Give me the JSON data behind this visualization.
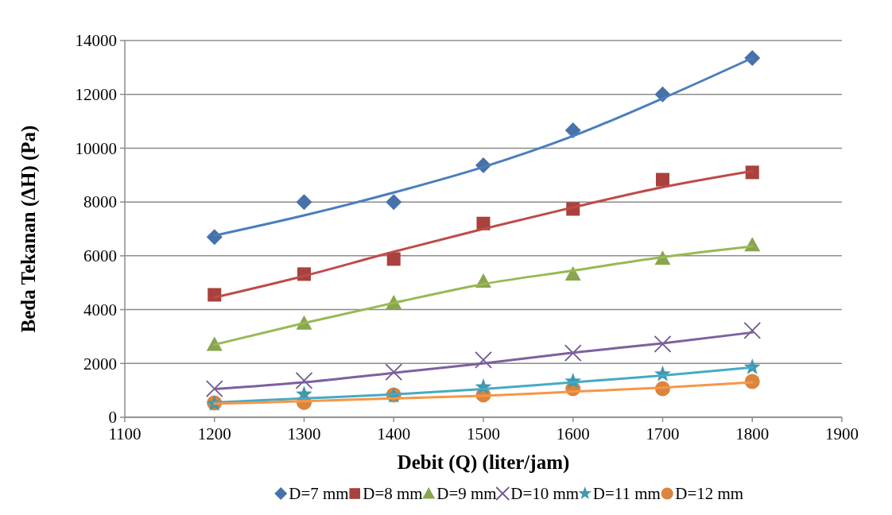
{
  "chart_data": {
    "type": "scatter",
    "xlabel": "Debit (Q) (liter/jam)",
    "ylabel": "Beda Tekanan (ΔH) (Pa)",
    "x": [
      1200,
      1300,
      1400,
      1500,
      1600,
      1700,
      1800
    ],
    "xlim": [
      1100,
      1900
    ],
    "xticks": [
      1100,
      1200,
      1300,
      1400,
      1500,
      1600,
      1700,
      1800,
      1900
    ],
    "ylim": [
      0,
      14000
    ],
    "yticks": [
      0,
      2000,
      4000,
      6000,
      8000,
      10000,
      12000,
      14000
    ],
    "grid": "y",
    "legend": "bottom",
    "series": [
      {
        "name": "D=7 mm",
        "color": "#4672aa",
        "marker": "diamond",
        "values": [
          6700,
          8000,
          8000,
          9360,
          10660,
          12000,
          13350
        ]
      },
      {
        "name": "D=8 mm",
        "color": "#a9413e",
        "marker": "square",
        "values": [
          4550,
          5320,
          5880,
          7200,
          7740,
          8830,
          9100
        ]
      },
      {
        "name": "D=9 mm",
        "color": "#89a54e",
        "marker": "triangle",
        "values": [
          2700,
          3490,
          4250,
          5050,
          5320,
          5900,
          6400
        ]
      },
      {
        "name": "D=10 mm",
        "color": "#71588f",
        "marker": "cross",
        "values": [
          1060,
          1360,
          1680,
          2130,
          2390,
          2720,
          3220
        ]
      },
      {
        "name": "D=11 mm",
        "color": "#4198af",
        "marker": "star",
        "values": [
          500,
          850,
          800,
          1120,
          1330,
          1600,
          1860
        ]
      },
      {
        "name": "D=12 mm",
        "color": "#db843d",
        "marker": "circle",
        "values": [
          530,
          550,
          830,
          830,
          1060,
          1060,
          1330
        ]
      },
      {
        "type": "line",
        "color": "#4a7ebb",
        "marker": "none",
        "x": [
          1200,
          1300,
          1400,
          1500,
          1600,
          1700,
          1800
        ],
        "values": [
          6750,
          7500,
          8350,
          9300,
          10450,
          11850,
          13350
        ]
      },
      {
        "type": "line",
        "color": "#be4b48",
        "marker": "none",
        "x": [
          1200,
          1300,
          1400,
          1500,
          1600,
          1700,
          1800
        ],
        "values": [
          4450,
          5250,
          6150,
          7000,
          7800,
          8550,
          9150
        ]
      },
      {
        "type": "line",
        "color": "#98b954",
        "marker": "none",
        "x": [
          1200,
          1300,
          1400,
          1500,
          1600,
          1700,
          1800
        ],
        "values": [
          2700,
          3500,
          4250,
          4950,
          5450,
          5950,
          6350
        ]
      },
      {
        "type": "line",
        "color": "#7d60a0",
        "marker": "none",
        "x": [
          1200,
          1300,
          1400,
          1500,
          1600,
          1700,
          1800
        ],
        "values": [
          1050,
          1300,
          1650,
          2000,
          2400,
          2750,
          3150
        ]
      },
      {
        "type": "line",
        "color": "#46aac5",
        "marker": "none",
        "x": [
          1200,
          1300,
          1400,
          1500,
          1600,
          1700,
          1800
        ],
        "values": [
          550,
          700,
          850,
          1050,
          1300,
          1550,
          1850
        ]
      },
      {
        "type": "line",
        "color": "#f79646",
        "marker": "none",
        "x": [
          1200,
          1300,
          1400,
          1500,
          1600,
          1700,
          1800
        ],
        "values": [
          500,
          600,
          700,
          800,
          950,
          1100,
          1300
        ]
      }
    ]
  }
}
